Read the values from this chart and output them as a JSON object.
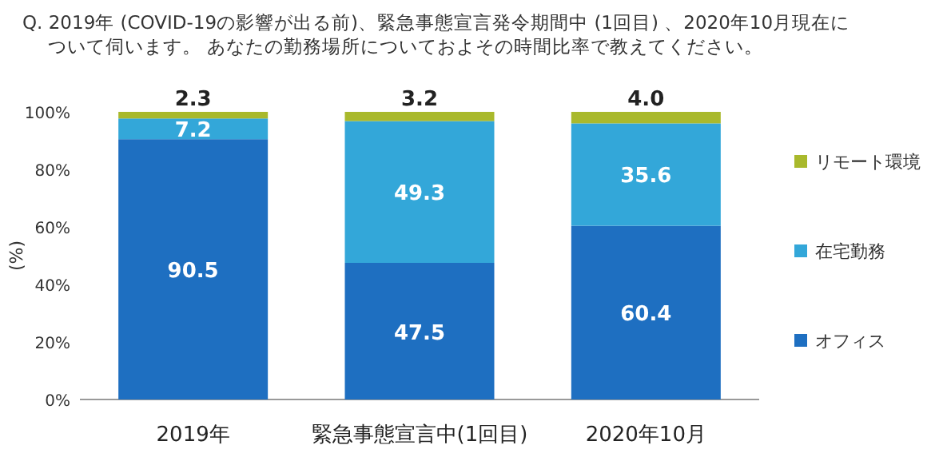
{
  "chart_data": {
    "type": "bar",
    "stacked": true,
    "title": "Q. 2019年 (COVID-19の影響が出る前)、緊急事態宣言発令期間中 (1回目) 、2020年10月現在について伺います。 あなたの勤務場所についておよその時間比率で教えてください。",
    "ylabel": "(%)",
    "categories": [
      "2019年",
      "緊急事態宣言中(1回目)",
      "2020年10月"
    ],
    "series": [
      {
        "name": "オフィス",
        "color": "#1e6fc1",
        "values": [
          90.5,
          47.5,
          60.4
        ],
        "value_labels": [
          "90.5",
          "47.5",
          "60.4"
        ]
      },
      {
        "name": "在宅勤務",
        "color": "#33a7d9",
        "values": [
          7.2,
          49.3,
          35.6
        ],
        "value_labels": [
          "7.2",
          "49.3",
          "35.6"
        ]
      },
      {
        "name": "リモート環境",
        "color": "#a9b92c",
        "values": [
          2.3,
          3.2,
          4.0
        ],
        "value_labels": [
          "2.3",
          "3.2",
          "4.0"
        ]
      }
    ],
    "ylim": [
      0,
      100
    ],
    "yticks": [
      {
        "value": 0,
        "label": "0%"
      },
      {
        "value": 20,
        "label": "20%"
      },
      {
        "value": 40,
        "label": "40%"
      },
      {
        "value": 60,
        "label": "60%"
      },
      {
        "value": 80,
        "label": "80%"
      },
      {
        "value": 100,
        "label": "100%"
      }
    ],
    "legend": "right",
    "grid": false
  }
}
